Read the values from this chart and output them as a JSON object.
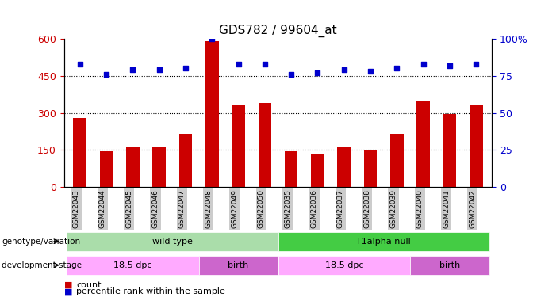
{
  "title": "GDS782 / 99604_at",
  "categories": [
    "GSM22043",
    "GSM22044",
    "GSM22045",
    "GSM22046",
    "GSM22047",
    "GSM22048",
    "GSM22049",
    "GSM22050",
    "GSM22035",
    "GSM22036",
    "GSM22037",
    "GSM22038",
    "GSM22039",
    "GSM22040",
    "GSM22041",
    "GSM22042"
  ],
  "counts": [
    280,
    145,
    165,
    160,
    215,
    590,
    335,
    340,
    145,
    135,
    165,
    148,
    215,
    345,
    295,
    335
  ],
  "percentile_ranks": [
    83,
    76,
    79,
    79,
    80,
    100,
    83,
    83,
    76,
    77,
    79,
    78,
    80,
    83,
    82,
    83
  ],
  "ylim_left": [
    0,
    600
  ],
  "ylim_right": [
    0,
    100
  ],
  "yticks_left": [
    0,
    150,
    300,
    450,
    600
  ],
  "yticks_right": [
    0,
    25,
    50,
    75,
    100
  ],
  "bar_color": "#cc0000",
  "dot_color": "#0000cc",
  "tick_label_bg": "#cccccc",
  "genotype_groups": [
    {
      "label": "wild type",
      "start": 0,
      "end": 8,
      "color": "#aaddaa"
    },
    {
      "label": "T1alpha null",
      "start": 8,
      "end": 16,
      "color": "#44cc44"
    }
  ],
  "dev_stage_groups": [
    {
      "label": "18.5 dpc",
      "start": 0,
      "end": 5,
      "color": "#ffaaff"
    },
    {
      "label": "birth",
      "start": 5,
      "end": 8,
      "color": "#cc66cc"
    },
    {
      "label": "18.5 dpc",
      "start": 8,
      "end": 13,
      "color": "#ffaaff"
    },
    {
      "label": "birth",
      "start": 13,
      "end": 16,
      "color": "#cc66cc"
    }
  ],
  "title_fontsize": 11,
  "axis_fontsize": 9,
  "geno_label": "genotype/variation",
  "dev_label": "development stage",
  "legend_count_label": "count",
  "legend_pct_label": "percentile rank within the sample"
}
